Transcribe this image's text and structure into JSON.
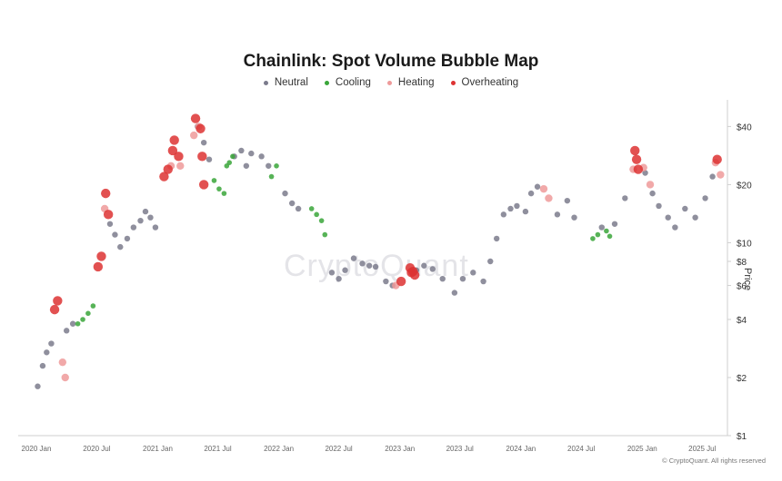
{
  "chart_data": {
    "type": "scatter",
    "title": "Chainlink: Spot Volume Bubble Map",
    "ylabel": "Price",
    "y_scale": "log",
    "ylim": [
      1,
      55
    ],
    "xlim": [
      "2020-01-01",
      "2025-09-15"
    ],
    "x_ticks": [
      "2020 Jan",
      "2020 Jul",
      "2021 Jan",
      "2021 Jul",
      "2022 Jan",
      "2022 Jul",
      "2023 Jan",
      "2023 Jul",
      "2024 Jan",
      "2024 Jul",
      "2025 Jan",
      "2025 Jul"
    ],
    "y_ticks": [
      {
        "label": "$1",
        "value": 1
      },
      {
        "label": "$2",
        "value": 2
      },
      {
        "label": "$4",
        "value": 4
      },
      {
        "label": "$6",
        "value": 6
      },
      {
        "label": "$8",
        "value": 8
      },
      {
        "label": "$10",
        "value": 10
      },
      {
        "label": "$20",
        "value": 20
      },
      {
        "label": "$40",
        "value": 40
      }
    ],
    "legend_position": "top-center",
    "series": [
      {
        "name": "Neutral",
        "color": "#7b7b8c",
        "points": [
          [
            "2020-01-05",
            1.8
          ],
          [
            "2020-01-20",
            2.3
          ],
          [
            "2020-02-01",
            2.7
          ],
          [
            "2020-02-15",
            3.0
          ],
          [
            "2020-04-01",
            3.5
          ],
          [
            "2020-04-20",
            3.8
          ],
          [
            "2020-08-10",
            12.5
          ],
          [
            "2020-08-25",
            11.0
          ],
          [
            "2020-09-10",
            9.5
          ],
          [
            "2020-10-01",
            10.5
          ],
          [
            "2020-10-20",
            12.0
          ],
          [
            "2020-11-10",
            13.0
          ],
          [
            "2020-11-25",
            14.5
          ],
          [
            "2020-12-10",
            13.5
          ],
          [
            "2020-12-25",
            12.0
          ],
          [
            "2021-05-01",
            40.0
          ],
          [
            "2021-05-20",
            33.0
          ],
          [
            "2021-06-05",
            27.0
          ],
          [
            "2021-08-20",
            28.0
          ],
          [
            "2021-09-10",
            30.0
          ],
          [
            "2021-09-25",
            25.0
          ],
          [
            "2021-10-10",
            29.0
          ],
          [
            "2021-11-10",
            28.0
          ],
          [
            "2021-12-01",
            25.0
          ],
          [
            "2022-01-20",
            18.0
          ],
          [
            "2022-02-10",
            16.0
          ],
          [
            "2022-03-01",
            15.0
          ],
          [
            "2022-06-10",
            7.0
          ],
          [
            "2022-07-01",
            6.5
          ],
          [
            "2022-07-20",
            7.2
          ],
          [
            "2022-08-15",
            8.3
          ],
          [
            "2022-09-10",
            7.8
          ],
          [
            "2022-10-01",
            7.6
          ],
          [
            "2022-10-20",
            7.5
          ],
          [
            "2022-11-20",
            6.3
          ],
          [
            "2022-12-10",
            6.0
          ],
          [
            "2023-02-20",
            7.2
          ],
          [
            "2023-03-15",
            7.6
          ],
          [
            "2023-04-10",
            7.3
          ],
          [
            "2023-05-10",
            6.5
          ],
          [
            "2023-06-15",
            5.5
          ],
          [
            "2023-07-10",
            6.5
          ],
          [
            "2023-08-10",
            7.0
          ],
          [
            "2023-09-10",
            6.3
          ],
          [
            "2023-10-01",
            8.0
          ],
          [
            "2023-10-20",
            10.5
          ],
          [
            "2023-11-10",
            14.0
          ],
          [
            "2023-12-01",
            15.0
          ],
          [
            "2023-12-20",
            15.5
          ],
          [
            "2024-01-15",
            14.5
          ],
          [
            "2024-02-01",
            18.0
          ],
          [
            "2024-02-20",
            19.5
          ],
          [
            "2024-04-20",
            14.0
          ],
          [
            "2024-05-20",
            16.5
          ],
          [
            "2024-06-10",
            13.5
          ],
          [
            "2024-09-01",
            12.0
          ],
          [
            "2024-10-10",
            12.5
          ],
          [
            "2024-11-10",
            17.0
          ],
          [
            "2025-01-10",
            23.0
          ],
          [
            "2025-02-01",
            18.0
          ],
          [
            "2025-02-20",
            15.5
          ],
          [
            "2025-03-20",
            13.5
          ],
          [
            "2025-04-10",
            12.0
          ],
          [
            "2025-05-10",
            15.0
          ],
          [
            "2025-06-10",
            13.5
          ],
          [
            "2025-07-10",
            17.0
          ],
          [
            "2025-08-01",
            22.0
          ]
        ]
      },
      {
        "name": "Cooling",
        "color": "#3aa63a",
        "points": [
          [
            "2020-05-05",
            3.8
          ],
          [
            "2020-05-20",
            4.0
          ],
          [
            "2020-06-05",
            4.3
          ],
          [
            "2020-06-20",
            4.7
          ],
          [
            "2021-06-20",
            21.0
          ],
          [
            "2021-07-05",
            19.0
          ],
          [
            "2021-07-20",
            18.0
          ],
          [
            "2021-07-28",
            25.0
          ],
          [
            "2021-08-05",
            26.0
          ],
          [
            "2021-08-15",
            28.0
          ],
          [
            "2021-12-10",
            22.0
          ],
          [
            "2021-12-25",
            25.0
          ],
          [
            "2022-04-10",
            15.0
          ],
          [
            "2022-04-25",
            14.0
          ],
          [
            "2022-05-10",
            13.0
          ],
          [
            "2022-05-20",
            11.0
          ],
          [
            "2024-08-05",
            10.5
          ],
          [
            "2024-08-20",
            11.0
          ],
          [
            "2024-09-15",
            11.5
          ],
          [
            "2024-09-25",
            10.8
          ]
        ]
      },
      {
        "name": "Heating",
        "color": "#ee9a9a",
        "points": [
          [
            "2020-03-20",
            2.4
          ],
          [
            "2020-03-28",
            2.0
          ],
          [
            "2020-07-25",
            15.0
          ],
          [
            "2021-02-10",
            25.0
          ],
          [
            "2021-03-10",
            25.0
          ],
          [
            "2021-04-20",
            36.0
          ],
          [
            "2021-05-05",
            40.0
          ],
          [
            "2022-12-20",
            6.0
          ],
          [
            "2024-03-10",
            19.0
          ],
          [
            "2024-03-25",
            17.0
          ],
          [
            "2024-12-05",
            24.0
          ],
          [
            "2025-01-05",
            24.5
          ],
          [
            "2025-01-25",
            20.0
          ],
          [
            "2025-08-10",
            26.0
          ],
          [
            "2025-08-25",
            22.5
          ]
        ]
      },
      {
        "name": "Overheating",
        "color": "#dd3333",
        "points": [
          [
            "2020-02-25",
            4.5
          ],
          [
            "2020-03-05",
            5.0
          ],
          [
            "2020-07-05",
            7.5
          ],
          [
            "2020-07-15",
            8.5
          ],
          [
            "2020-07-28",
            18.0
          ],
          [
            "2020-08-05",
            14.0
          ],
          [
            "2021-01-20",
            22.0
          ],
          [
            "2021-02-01",
            24.0
          ],
          [
            "2021-02-15",
            30.0
          ],
          [
            "2021-02-20",
            34.0
          ],
          [
            "2021-03-05",
            28.0
          ],
          [
            "2021-04-25",
            44.0
          ],
          [
            "2021-05-10",
            39.0
          ],
          [
            "2021-05-15",
            28.0
          ],
          [
            "2021-05-20",
            20.0
          ],
          [
            "2023-01-05",
            6.3
          ],
          [
            "2023-02-01",
            7.4
          ],
          [
            "2023-02-05",
            7.0
          ],
          [
            "2023-02-10",
            7.1
          ],
          [
            "2023-02-15",
            6.8
          ],
          [
            "2024-12-10",
            30.0
          ],
          [
            "2024-12-15",
            27.0
          ],
          [
            "2024-12-20",
            24.0
          ],
          [
            "2025-08-15",
            27.0
          ]
        ]
      }
    ]
  },
  "watermark": "CryptoQuant",
  "credit": "© CryptoQuant. All rights reserved"
}
